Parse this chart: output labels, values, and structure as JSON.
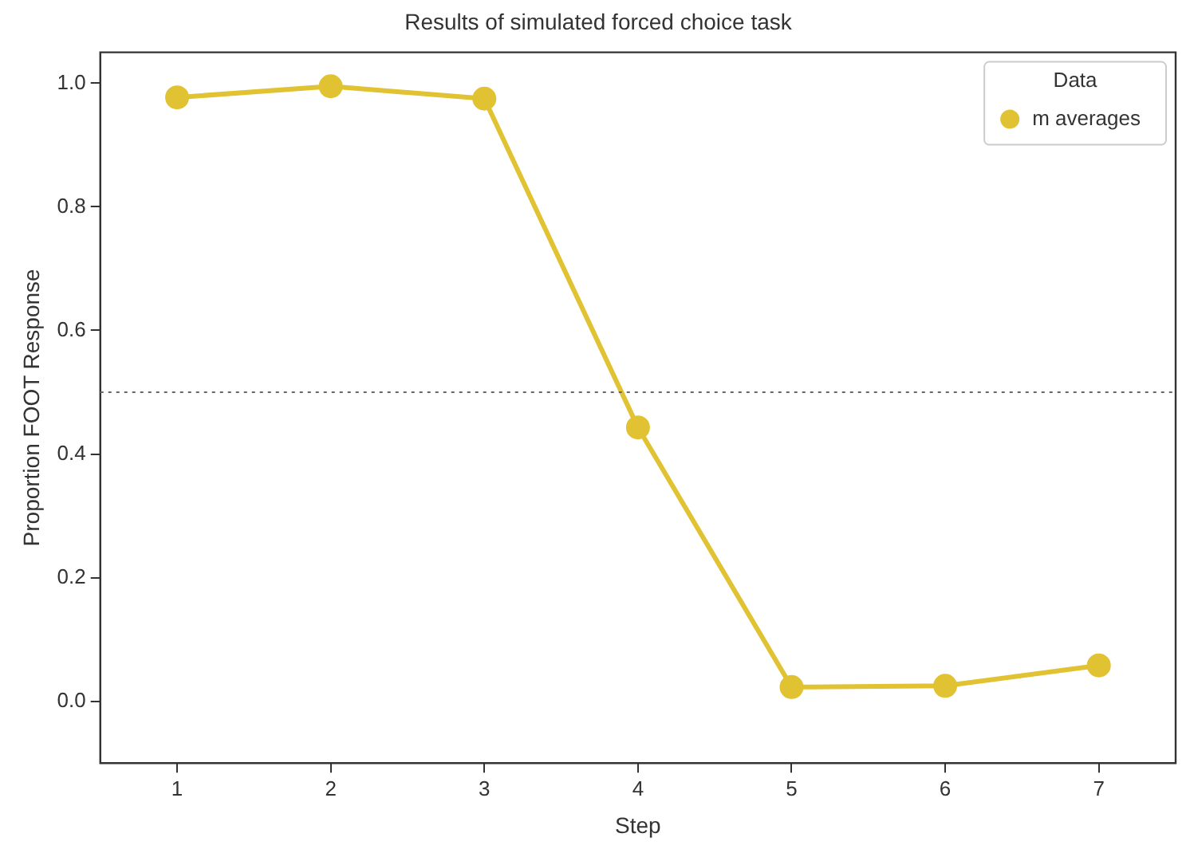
{
  "chart_data": {
    "type": "line",
    "title": "Results of simulated forced choice task",
    "xlabel": "Step",
    "ylabel": "Proportion FOOT Response",
    "legend_title": "Data",
    "categories": [
      "1",
      "2",
      "3",
      "4",
      "5",
      "6",
      "7"
    ],
    "series": [
      {
        "name": "m averages",
        "color": "#e0c232",
        "values": [
          0.977,
          0.995,
          0.975,
          0.443,
          0.023,
          0.025,
          0.058
        ]
      }
    ],
    "ylim": [
      -0.1,
      1.05
    ],
    "yticks": [
      {
        "value": 0,
        "label": "0.0"
      },
      {
        "value": 0.2,
        "label": "0.2"
      },
      {
        "value": 0.4,
        "label": "0.4"
      },
      {
        "value": 0.6,
        "label": "0.6"
      },
      {
        "value": 0.8,
        "label": "0.8"
      },
      {
        "value": 1,
        "label": "1.0"
      }
    ],
    "ref_lines": [
      {
        "axis": "y",
        "value": 0.5,
        "color": "#666666",
        "line_style": "dotted"
      }
    ],
    "grid": false,
    "legend": "top right",
    "marker": "circle",
    "line_style": "solid"
  }
}
